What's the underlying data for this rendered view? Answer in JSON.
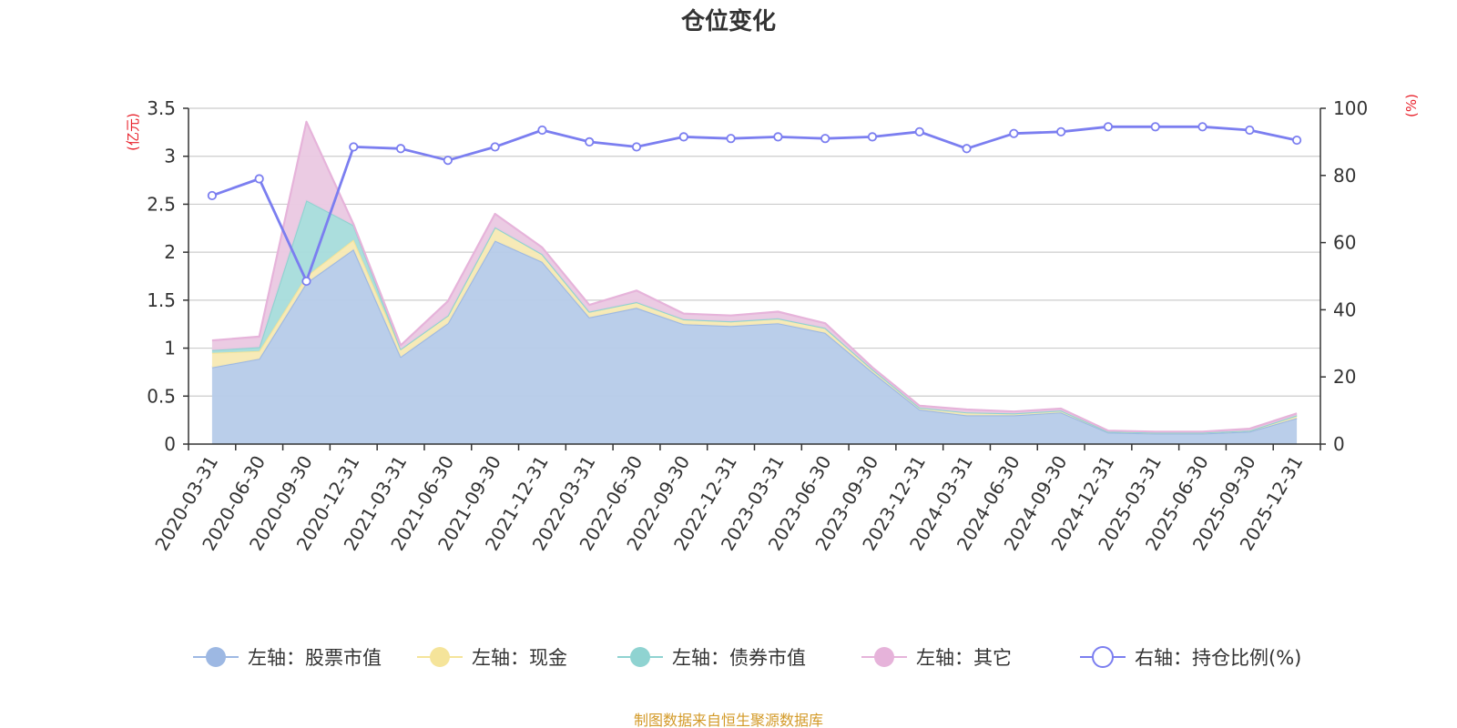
{
  "chart_data": {
    "type": "area",
    "title": "仓位变化",
    "source": "制图数据来自恒生聚源数据库",
    "left_axis": {
      "unit": "(亿元)",
      "min": 0,
      "max": 3.5,
      "ticks": [
        "0",
        "0.5",
        "1",
        "1.5",
        "2",
        "2.5",
        "3",
        "3.5"
      ]
    },
    "right_axis": {
      "unit": "(%)",
      "min": 0,
      "max": 100,
      "ticks": [
        "0",
        "20",
        "40",
        "60",
        "80",
        "100"
      ]
    },
    "categories": [
      "2020-03-31",
      "2020-06-30",
      "2020-09-30",
      "2020-12-31",
      "2021-03-31",
      "2021-06-30",
      "2021-09-30",
      "2021-12-31",
      "2022-03-31",
      "2022-06-30",
      "2022-09-30",
      "2022-12-31",
      "2023-03-31",
      "2023-06-30",
      "2023-09-30",
      "2023-12-31",
      "2024-03-31",
      "2024-06-30",
      "2024-09-30",
      "2024-12-31",
      "2025-03-31",
      "2025-06-30",
      "2025-09-30",
      "2025-12-31"
    ],
    "stacked_series": [
      {
        "name": "左轴：股票市值",
        "color": "#9db8e3",
        "fill": "#b6cbe9",
        "values": [
          0.8,
          0.89,
          1.68,
          2.03,
          0.91,
          1.26,
          2.12,
          1.9,
          1.32,
          1.42,
          1.25,
          1.23,
          1.26,
          1.16,
          0.75,
          0.36,
          0.3,
          0.3,
          0.33,
          0.12,
          0.11,
          0.11,
          0.13,
          0.27
        ]
      },
      {
        "name": "左轴：现金",
        "color": "#f5e49a",
        "fill": "#f7e9b3",
        "values": [
          0.15,
          0.08,
          0.07,
          0.1,
          0.08,
          0.08,
          0.14,
          0.08,
          0.06,
          0.06,
          0.05,
          0.05,
          0.05,
          0.05,
          0.03,
          0.02,
          0.03,
          0.02,
          0.02,
          0.01,
          0.01,
          0.01,
          0.01,
          0.03
        ]
      },
      {
        "name": "左轴：债券市值",
        "color": "#8fd3d1",
        "fill": "#a7dcdb",
        "values": [
          0.03,
          0.04,
          0.79,
          0.15,
          0,
          0,
          0,
          0,
          0,
          0,
          0,
          0,
          0,
          0,
          0,
          0,
          0,
          0,
          0,
          0,
          0,
          0,
          0,
          0
        ]
      },
      {
        "name": "左轴：其它",
        "color": "#e6b3da",
        "fill": "#eac8e2",
        "values": [
          0.1,
          0.11,
          0.82,
          0.01,
          0.04,
          0.15,
          0.14,
          0.07,
          0.07,
          0.12,
          0.06,
          0.06,
          0.07,
          0.05,
          0.02,
          0.02,
          0.03,
          0.02,
          0.02,
          0.01,
          0.01,
          0.01,
          0.02,
          0.02
        ]
      }
    ],
    "line_series": {
      "name": "右轴：持仓比例(%)",
      "color": "#7b7ef0",
      "values": [
        74,
        79,
        48.5,
        88.5,
        88,
        84.5,
        88.5,
        93.5,
        90,
        88.5,
        91.5,
        91,
        91.5,
        91,
        91.5,
        93,
        88,
        92.5,
        93,
        94.5,
        94.5,
        94.5,
        93.5,
        90.5
      ]
    },
    "legend_position": "bottom",
    "grid": true
  }
}
